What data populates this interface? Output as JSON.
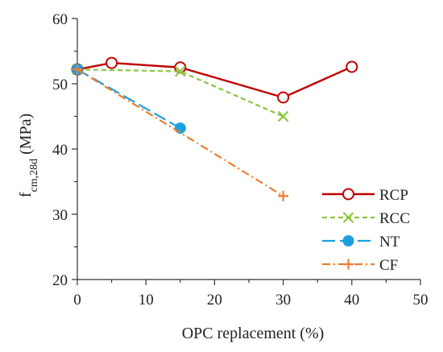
{
  "chart_data": {
    "type": "line",
    "title": "",
    "xlabel": "OPC replacement (%)",
    "ylabel": {
      "base": "f",
      "subscript": "cm,28d",
      "suffix": " (MPa)"
    },
    "xlim": [
      0,
      50
    ],
    "ylim": [
      20,
      60
    ],
    "xticks": [
      0,
      10,
      20,
      30,
      40,
      50
    ],
    "yticks": [
      20,
      30,
      40,
      50,
      60
    ],
    "grid": false,
    "legend_position": "bottom-right",
    "series": [
      {
        "name": "RCP",
        "color": "#c00000",
        "line_style": "solid",
        "marker": "open-circle",
        "x": [
          0,
          5,
          15,
          30,
          40
        ],
        "y": [
          52.2,
          53.2,
          52.5,
          47.9,
          52.6
        ]
      },
      {
        "name": "RCC",
        "color": "#8cc63f",
        "line_style": "dashed",
        "marker": "x",
        "x": [
          0,
          15,
          30
        ],
        "y": [
          52.2,
          51.9,
          45.0
        ]
      },
      {
        "name": "NT",
        "color": "#1ca0e0",
        "line_style": "long-dash",
        "marker": "filled-circle",
        "x": [
          0,
          15
        ],
        "y": [
          52.2,
          43.2
        ]
      },
      {
        "name": "CF",
        "color": "#ed7d31",
        "line_style": "dash-dot",
        "marker": "plus",
        "x": [
          0,
          30
        ],
        "y": [
          52.2,
          32.8
        ]
      }
    ]
  }
}
